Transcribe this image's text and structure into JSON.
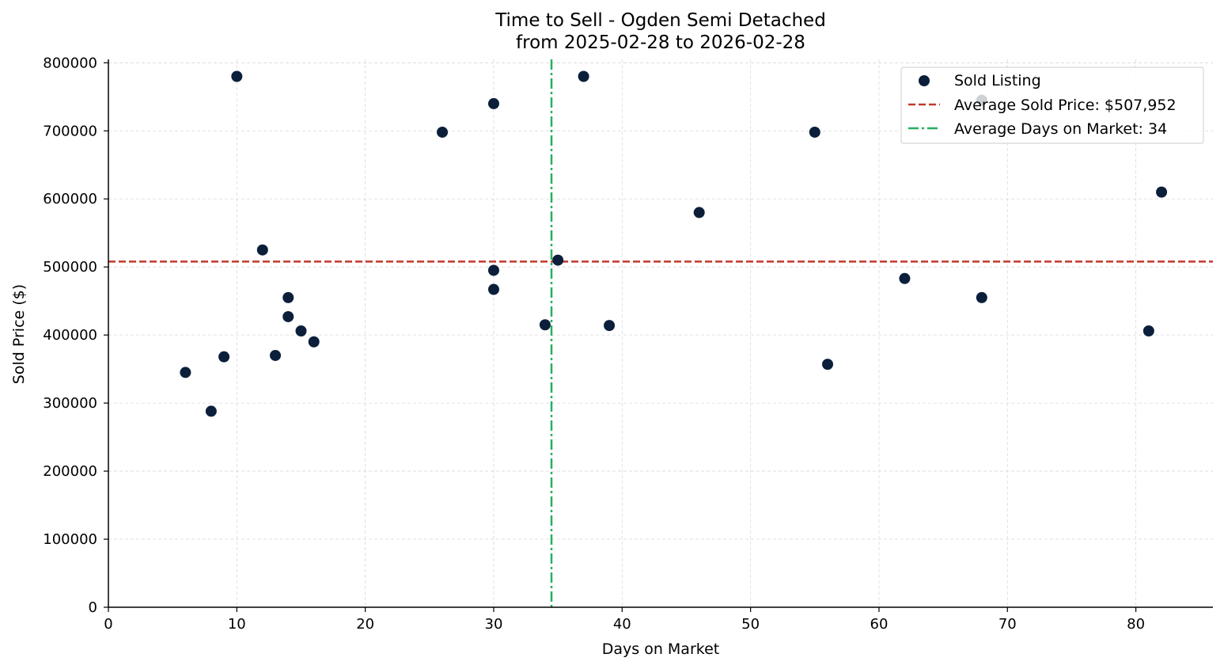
{
  "colors": {
    "point": "#0b1f3a",
    "avg_price_line": "#c0392b",
    "avg_days_line": "#27ae60",
    "grid": "#d9d9d9",
    "axis": "#000000"
  },
  "chart_data": {
    "type": "scatter",
    "title": "Time to Sell - Ogden Semi Detached",
    "subtitle": "from 2025-02-28 to 2026-02-28",
    "xlabel": "Days on Market",
    "ylabel": "Sold Price ($)",
    "xlim": [
      0,
      86
    ],
    "ylim": [
      0,
      805000
    ],
    "xticks": [
      0,
      10,
      20,
      30,
      40,
      50,
      60,
      70,
      80
    ],
    "yticks": [
      0,
      100000,
      200000,
      300000,
      400000,
      500000,
      600000,
      700000,
      800000
    ],
    "grid": true,
    "legend_position": "top-right",
    "series": [
      {
        "name": "Sold Listing",
        "points": [
          {
            "x": 6,
            "y": 345000
          },
          {
            "x": 8,
            "y": 288000
          },
          {
            "x": 9,
            "y": 368000
          },
          {
            "x": 10,
            "y": 780000
          },
          {
            "x": 12,
            "y": 525000
          },
          {
            "x": 13,
            "y": 370000
          },
          {
            "x": 14,
            "y": 455000
          },
          {
            "x": 14,
            "y": 427000
          },
          {
            "x": 15,
            "y": 406000
          },
          {
            "x": 16,
            "y": 390000
          },
          {
            "x": 26,
            "y": 698000
          },
          {
            "x": 30,
            "y": 740000
          },
          {
            "x": 30,
            "y": 495000
          },
          {
            "x": 30,
            "y": 467000
          },
          {
            "x": 34,
            "y": 415000
          },
          {
            "x": 35,
            "y": 510000
          },
          {
            "x": 37,
            "y": 780000
          },
          {
            "x": 39,
            "y": 414000
          },
          {
            "x": 46,
            "y": 580000
          },
          {
            "x": 55,
            "y": 698000
          },
          {
            "x": 56,
            "y": 357000
          },
          {
            "x": 62,
            "y": 483000
          },
          {
            "x": 68,
            "y": 745000
          },
          {
            "x": 68,
            "y": 455000
          },
          {
            "x": 81,
            "y": 406000
          },
          {
            "x": 82,
            "y": 610000
          }
        ]
      }
    ],
    "reference_lines": [
      {
        "name": "Average Sold Price: $507,952",
        "orientation": "horizontal",
        "value": 507952,
        "style": "dashed"
      },
      {
        "name": "Average Days on Market: 34",
        "orientation": "vertical",
        "value": 34.5,
        "style": "dashdot"
      }
    ],
    "legend": [
      {
        "label": "Sold Listing",
        "kind": "marker"
      },
      {
        "label": "Average Sold Price: $507,952",
        "kind": "dashed"
      },
      {
        "label": "Average Days on Market: 34",
        "kind": "dashdot"
      }
    ]
  }
}
